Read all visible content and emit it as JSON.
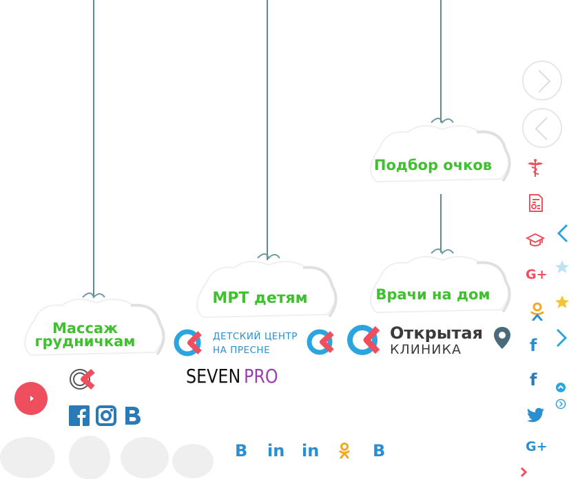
{
  "clouds": {
    "massage": "Массаж грудничкам",
    "mrt": "МРТ детям",
    "glasses": "Подбор очков",
    "home_doctors": "Врачи на дом"
  },
  "logos": {
    "center_line1": "ДЕТСКИЙ ЦЕНТР",
    "center_line2": "НА ПРЕСНЕ",
    "seven_a": "SEVEN",
    "seven_b": "PRO",
    "clinic_line1": "Открытая",
    "clinic_line2": "КЛИНИКА"
  },
  "sidebar": {
    "gplus_label": "G+",
    "ok_label": "ок",
    "fb_label": "f"
  },
  "social_bottom": {
    "vk": "B",
    "linkedin": "in"
  },
  "colors": {
    "green": "#3fc02e",
    "pink": "#ef4e5f",
    "blue": "#2a8fd0",
    "orange": "#f5a623",
    "dark": "#3a3a3a",
    "purple": "#9b3fae"
  },
  "icons": [
    "caduceus-icon",
    "document-icon",
    "graduation-cap-icon",
    "google-plus-icon",
    "odnoklassniki-icon",
    "facebook-icon",
    "twitter-icon",
    "star-icon",
    "chevron-right-icon",
    "chevron-left-icon",
    "play-icon",
    "instagram-icon",
    "vk-icon",
    "linkedin-icon",
    "map-pin-icon"
  ]
}
